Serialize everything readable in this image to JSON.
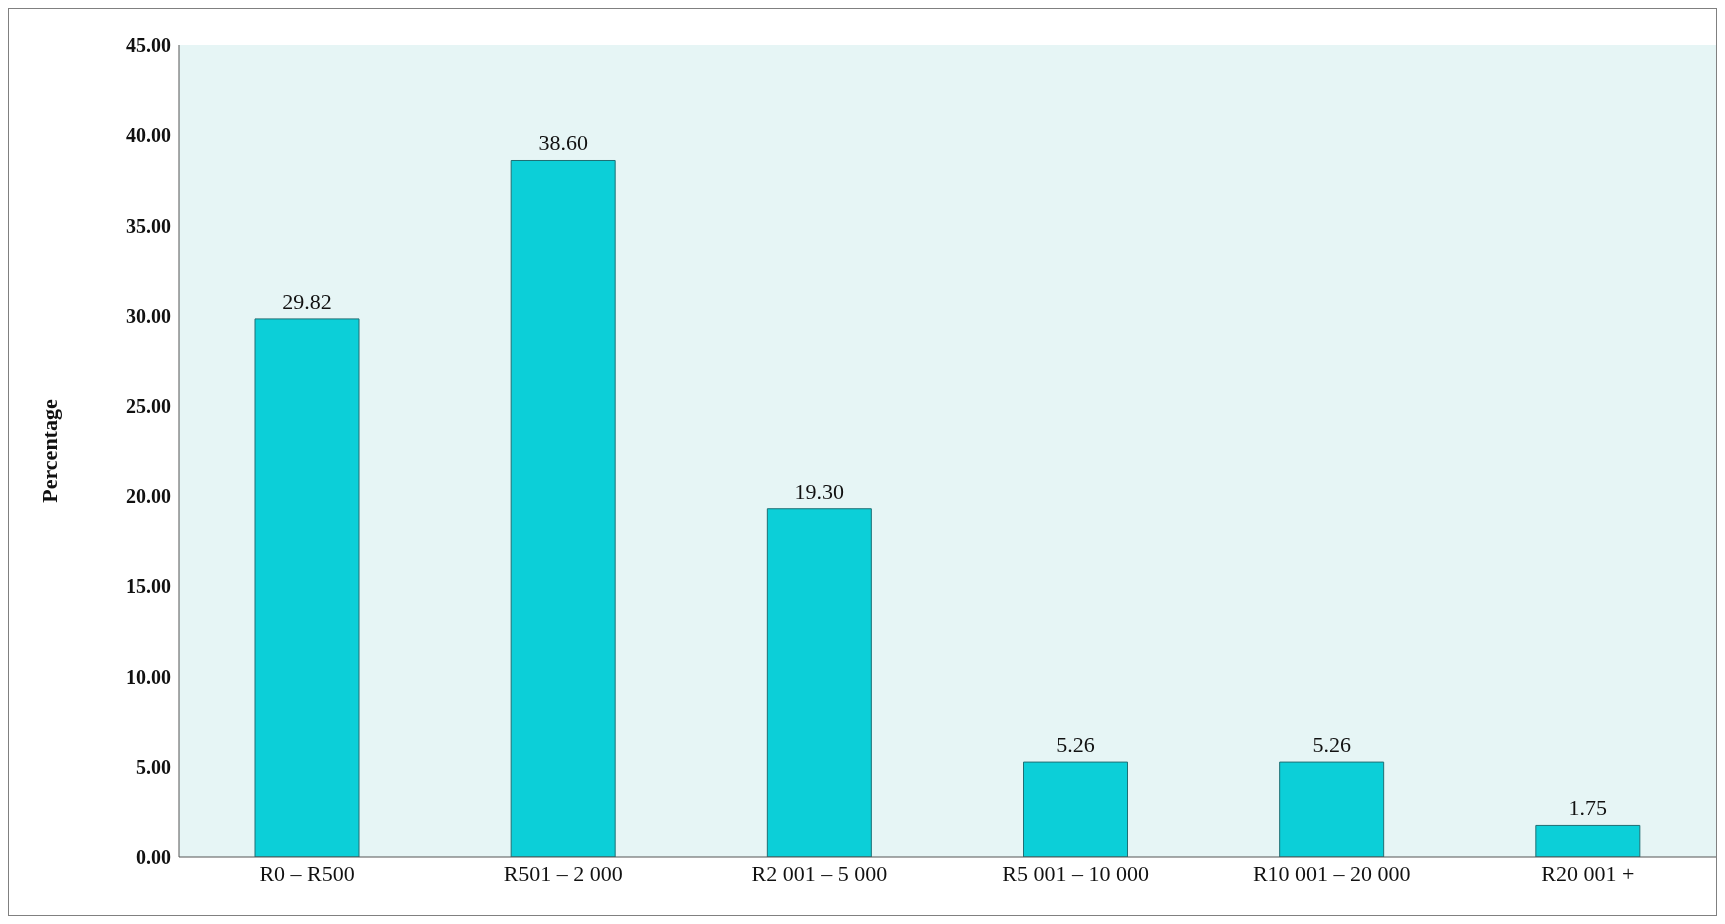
{
  "chart_data": {
    "type": "bar",
    "ylabel": "Percentage",
    "categories": [
      "R0 – R500",
      "R501 – 2 000",
      "R2 001 – 5 000",
      "R5 001 – 10 000",
      "R10 001 – 20 000",
      "R20 001 +"
    ],
    "values": [
      29.82,
      38.6,
      19.3,
      5.26,
      5.26,
      1.75
    ],
    "value_labels": [
      "29.82",
      "38.60",
      "19.30",
      "5.26",
      "5.26",
      "1.75"
    ],
    "color": "#0ccfd8",
    "ylim": [
      0,
      45
    ],
    "yticks": [
      {
        "value": 0,
        "label": "0.00"
      },
      {
        "value": 5,
        "label": "5.00"
      },
      {
        "value": 10,
        "label": "10.00"
      },
      {
        "value": 15,
        "label": "15.00"
      },
      {
        "value": 20,
        "label": "20.00"
      },
      {
        "value": 25,
        "label": "25.00"
      },
      {
        "value": 30,
        "label": "30.00"
      },
      {
        "value": 35,
        "label": "35.00"
      },
      {
        "value": 40,
        "label": "40.00"
      },
      {
        "value": 45,
        "label": "45.00"
      }
    ],
    "grid": false,
    "legend": false
  }
}
